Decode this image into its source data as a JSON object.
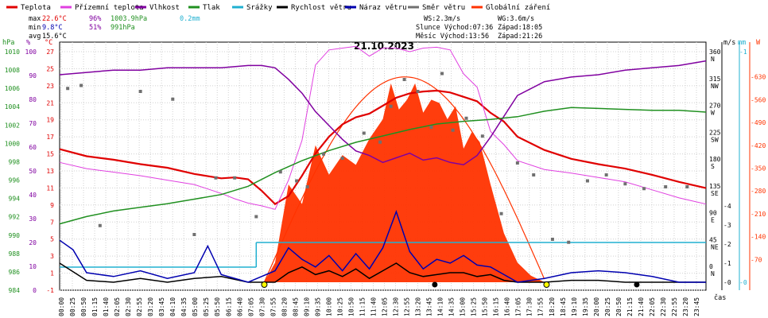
{
  "chart_data": {
    "type": "line",
    "title": "21.10.2023",
    "legend": [
      {
        "label": "Teplota",
        "color": "#e00000"
      },
      {
        "label": "Přízemní teplota",
        "color": "#e040e0"
      },
      {
        "label": "Vlhkost",
        "color": "#8000a0"
      },
      {
        "label": "Tlak",
        "color": "#209020"
      },
      {
        "label": "Srážky",
        "color": "#20b0d0"
      },
      {
        "label": "Rychlost větru",
        "color": "#000000"
      },
      {
        "label": "Náraz větru",
        "color": "#0000b0"
      },
      {
        "label": "Směr větru",
        "color": "#707070"
      },
      {
        "label": "Globální záření",
        "color": "#ff3300"
      }
    ],
    "stats": {
      "max_label": "max",
      "max_temp": "22.6°C",
      "max_hum": "96%",
      "max_press": "1003.9hPa",
      "max_rain": "0.2mm",
      "min_label": "min",
      "min_temp": "9.8°C",
      "min_hum": "51%",
      "min_press": "991hPa",
      "avg_label": "avg",
      "avg_temp": "15.6°C"
    },
    "sun": {
      "ws": "WS:2.3m/s",
      "wg": "WG:3.6m/s",
      "slunce": "Slunce Východ:07:36",
      "slunce_zapad": "Západ:18:05",
      "mesic": "Měsíc Východ:13:56",
      "mesic_zapad": "Západ:21:26"
    },
    "axes": {
      "hpa": {
        "unit": "hPa",
        "ticks": [
          "1010",
          "1008",
          "1006",
          "1004",
          "1002",
          "1000",
          "998",
          "996",
          "994",
          "992",
          "990",
          "988",
          "986",
          "984"
        ]
      },
      "pct": {
        "unit": "%",
        "ticks": [
          "100",
          "90",
          "80",
          "70",
          "60",
          "50",
          "40",
          "30",
          "20",
          "10",
          "0"
        ]
      },
      "temp": {
        "unit": "°C",
        "ticks": [
          "27",
          "25",
          "23",
          "21",
          "19",
          "17",
          "15",
          "13",
          "11",
          "9",
          "7",
          "5",
          "3",
          "1",
          "-1"
        ]
      },
      "wind": {
        "unit": "m/s",
        "ticks": [
          "4",
          "3",
          "2",
          "1",
          "0"
        ]
      },
      "dir": {
        "unit": "°",
        "ticks": [
          "360",
          "315",
          "270",
          "225",
          "180",
          "135",
          "90",
          "45",
          "0"
        ],
        "names": [
          "N",
          "NW",
          "W",
          "SW",
          "S",
          "SE",
          "E",
          "NE",
          "N"
        ]
      },
      "rain": {
        "unit": "mm",
        "ticks": [
          "1",
          "0"
        ]
      },
      "rad": {
        "unit": "W",
        "ticks": [
          "630",
          "560",
          "490",
          "420",
          "350",
          "280",
          "210",
          "140",
          "70"
        ]
      },
      "time_label": "čas",
      "x_ticks": [
        "00:00",
        "00:25",
        "00:50",
        "01:15",
        "01:40",
        "02:05",
        "02:30",
        "02:55",
        "03:20",
        "03:45",
        "04:10",
        "04:35",
        "05:00",
        "05:25",
        "05:50",
        "06:15",
        "06:40",
        "07:05",
        "07:30",
        "07:55",
        "08:20",
        "08:45",
        "09:10",
        "09:35",
        "10:00",
        "10:25",
        "10:50",
        "11:15",
        "11:40",
        "12:05",
        "12:30",
        "12:55",
        "13:20",
        "13:45",
        "14:10",
        "14:35",
        "15:00",
        "15:25",
        "15:50",
        "16:15",
        "16:40",
        "17:05",
        "17:30",
        "17:55",
        "18:20",
        "18:45",
        "19:10",
        "19:35",
        "20:00",
        "20:25",
        "20:50",
        "21:15",
        "21:40",
        "22:05",
        "22:30",
        "22:55",
        "23:20",
        "23:45"
      ]
    },
    "series": [
      {
        "name": "Teplota",
        "axis": "temp",
        "x": [
          0,
          1,
          2,
          3,
          4,
          5,
          6,
          6.5,
          7,
          7.5,
          8,
          8.5,
          9,
          9.5,
          10,
          10.5,
          11,
          11.5,
          12,
          12.5,
          13,
          13.5,
          14,
          14.5,
          15,
          15.5,
          16,
          16.5,
          17,
          18,
          19,
          20,
          21,
          22,
          23,
          24
        ],
        "values": [
          16.0,
          15.2,
          14.8,
          14.3,
          13.9,
          13.2,
          12.7,
          12.8,
          12.6,
          11.3,
          9.8,
          10.7,
          13.0,
          15.5,
          17.4,
          18.8,
          19.6,
          20.0,
          20.9,
          21.8,
          22.3,
          22.5,
          22.6,
          22.4,
          21.9,
          21.4,
          20.1,
          19.1,
          17.4,
          15.9,
          14.9,
          14.3,
          13.8,
          13.1,
          12.3,
          11.6
        ]
      },
      {
        "name": "Přízemní teplota",
        "axis": "temp",
        "x": [
          0,
          1,
          2,
          3,
          4,
          5,
          6,
          6.5,
          7,
          7.5,
          8,
          8.5,
          9,
          9.5,
          10,
          10.5,
          11,
          11.5,
          12,
          12.5,
          13,
          13.5,
          14,
          14.5,
          15,
          15.5,
          16,
          16.5,
          17,
          18,
          19,
          20,
          21,
          22,
          23,
          24
        ],
        "values": [
          14.5,
          13.8,
          13.4,
          13.0,
          12.5,
          12.0,
          11.0,
          10.4,
          9.9,
          9.6,
          9.2,
          12.5,
          17.0,
          25.5,
          27.2,
          27.4,
          27.6,
          26.5,
          27.4,
          27.4,
          27.0,
          27.4,
          27.5,
          27.2,
          24.5,
          23.0,
          18.0,
          16.5,
          14.7,
          13.7,
          13.3,
          12.8,
          12.3,
          11.4,
          10.5,
          9.8
        ]
      },
      {
        "name": "Vlhkost",
        "axis": "pct",
        "x": [
          0,
          1,
          2,
          3,
          4,
          5,
          6,
          7,
          7.5,
          8,
          8.5,
          9,
          9.5,
          10,
          10.5,
          11,
          11.5,
          12,
          12.5,
          13,
          13.5,
          14,
          14.5,
          15,
          15.5,
          16,
          16.5,
          17,
          18,
          19,
          20,
          21,
          22,
          23,
          24
        ],
        "values": [
          90,
          91,
          92,
          92,
          93,
          93,
          93,
          94,
          94,
          93,
          88,
          82,
          74,
          68,
          62,
          57,
          55,
          52,
          54,
          56,
          53,
          54,
          52,
          51,
          55,
          63,
          72,
          81,
          87,
          89,
          90,
          92,
          93,
          94,
          96
        ]
      },
      {
        "name": "Tlak",
        "axis": "hpa",
        "x": [
          0,
          1,
          2,
          3,
          4,
          5,
          6,
          7,
          8,
          9,
          10,
          11,
          12,
          13,
          14,
          15,
          16,
          17,
          18,
          19,
          20,
          21,
          22,
          23,
          24
        ],
        "values": [
          991.2,
          992.0,
          992.6,
          993.0,
          993.4,
          993.9,
          994.4,
          995.3,
          996.8,
          998.1,
          999.2,
          1000.1,
          1000.8,
          1001.5,
          1002.1,
          1002.4,
          1002.6,
          1002.9,
          1003.5,
          1003.9,
          1003.8,
          1003.7,
          1003.6,
          1003.6,
          1003.4
        ]
      },
      {
        "name": "Rychlost větru",
        "axis": "wind",
        "x": [
          0,
          1,
          2,
          3,
          4,
          5,
          6,
          7,
          8,
          8.5,
          9,
          9.5,
          10,
          10.5,
          11,
          11.5,
          12,
          12.5,
          13,
          13.5,
          14,
          14.5,
          15,
          15.5,
          16,
          16.5,
          17,
          18,
          19,
          20,
          21,
          22,
          23,
          24
        ],
        "values": [
          1.0,
          0.1,
          0.0,
          0.2,
          0.0,
          0.2,
          0.3,
          0.0,
          0.0,
          0.5,
          0.8,
          0.4,
          0.6,
          0.3,
          0.7,
          0.2,
          0.6,
          1.0,
          0.5,
          0.3,
          0.4,
          0.5,
          0.5,
          0.3,
          0.4,
          0.1,
          0.0,
          0.0,
          0.1,
          0.1,
          0.0,
          0.0,
          0.0,
          0.0
        ]
      },
      {
        "name": "Náraz větru",
        "axis": "wind",
        "x": [
          0,
          0.5,
          1,
          2,
          3,
          4,
          5,
          5.5,
          6,
          7,
          8,
          8.5,
          9,
          9.5,
          10,
          10.5,
          11,
          11.5,
          12,
          12.5,
          13,
          13.5,
          14,
          14.5,
          15,
          15.5,
          16,
          17,
          18,
          19,
          20,
          21,
          22,
          23,
          24
        ],
        "values": [
          2.2,
          1.7,
          0.5,
          0.3,
          0.6,
          0.2,
          0.5,
          1.9,
          0.4,
          0.0,
          0.6,
          1.8,
          1.2,
          0.8,
          1.4,
          0.6,
          1.5,
          0.7,
          1.8,
          3.7,
          1.6,
          0.7,
          1.2,
          1.0,
          1.4,
          0.9,
          0.8,
          0.0,
          0.2,
          0.5,
          0.6,
          0.5,
          0.3,
          0.0,
          0.0
        ]
      },
      {
        "name": "Směr větru",
        "axis": "dir",
        "x": [
          0.3,
          0.8,
          1.5,
          3.0,
          4.2,
          5.0,
          5.8,
          6.5,
          7.3,
          8.2,
          8.8,
          9.2,
          9.8,
          10.5,
          11.3,
          11.9,
          12.3,
          12.8,
          13.3,
          13.8,
          14.2,
          14.6,
          15.1,
          15.7,
          16.4,
          17.0,
          17.6,
          18.3,
          18.9,
          19.6,
          20.3,
          21.0,
          21.7,
          22.5,
          23.3
        ],
        "values": [
          305,
          310,
          75,
          300,
          287,
          60,
          155,
          155,
          90,
          165,
          150,
          140,
          195,
          188,
          230,
          215,
          275,
          320,
          300,
          240,
          330,
          235,
          255,
          225,
          95,
          180,
          160,
          52,
          47,
          150,
          160,
          145,
          137,
          140,
          140
        ]
      }
    ],
    "radiation": {
      "axis": "rad",
      "x": [
        7.6,
        8.0,
        8.5,
        9.0,
        9.5,
        10.0,
        10.5,
        11.0,
        11.5,
        12.0,
        12.3,
        12.6,
        12.9,
        13.2,
        13.5,
        13.8,
        14.1,
        14.4,
        14.7,
        15.0,
        15.3,
        15.6,
        16.0,
        16.5,
        17.0,
        17.5,
        18.0
      ],
      "values": [
        0,
        60,
        300,
        240,
        420,
        330,
        390,
        360,
        440,
        500,
        610,
        530,
        560,
        610,
        520,
        560,
        550,
        500,
        540,
        410,
        460,
        430,
        300,
        150,
        60,
        20,
        0
      ],
      "clear_sky_peak": 630
    }
  }
}
